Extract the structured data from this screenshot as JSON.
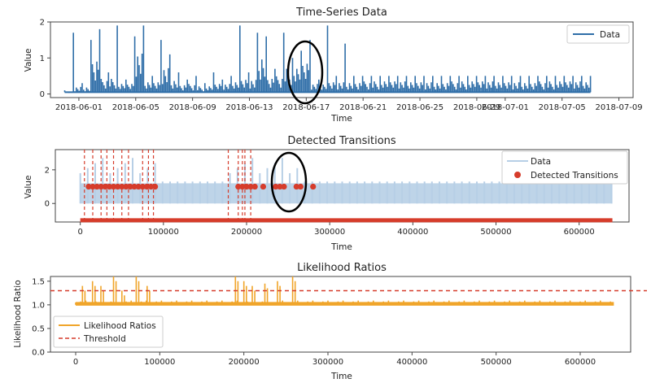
{
  "chart_data": [
    {
      "type": "line",
      "title": "Time-Series Data",
      "xlabel": "Time",
      "ylabel": "Value",
      "x_ticks": [
        "2018-06-01",
        "2018-06-05",
        "2018-06-09",
        "2018-06-13",
        "2018-06-17",
        "2018-06-21",
        "2018-06-25",
        "2018-06-29",
        "2018-07-01",
        "2018-07-05",
        "2018-07-09"
      ],
      "y_ticks": [
        0,
        1,
        2
      ],
      "ylim": [
        -0.1,
        2.0
      ],
      "xlim": [
        "2018-05-30",
        "2018-07-10"
      ],
      "series_color": "#2f6ea8",
      "legend": [
        "Data"
      ],
      "legend_position": "top-right",
      "series": [
        {
          "name": "Data",
          "x_start": "2018-05-31",
          "x_end": "2018-07-07",
          "note_dates": [],
          "values": [
            0.1,
            1.7,
            0.3,
            1.5,
            1.8,
            0.6,
            1.9,
            0.4,
            1.6,
            1.9,
            0.5,
            1.5,
            1.1,
            0.6,
            0.4,
            0.5,
            0.3,
            0.6,
            0.4,
            0.5,
            1.9,
            0.6,
            1.7,
            1.6,
            0.7,
            1.7,
            1.0,
            1.2,
            1.5,
            0.4,
            1.9,
            0.5,
            1.4,
            0.5,
            0.5,
            0.5,
            0.5,
            0.5,
            0.5,
            0.5,
            0.5,
            0.5,
            0.5,
            0.5,
            0.5,
            0.5,
            0.5,
            0.5,
            0.5,
            0.5,
            0.5,
            0.5,
            0.5,
            0.5,
            0.5,
            0.5,
            0.5,
            0.5,
            0.5,
            0.5,
            0.5
          ]
        }
      ],
      "annotation": "ellipse around 2018-06-17"
    },
    {
      "type": "scatter",
      "title": "Detected Transitions",
      "xlabel": "Time",
      "ylabel": "Value",
      "x_ticks": [
        0,
        100000,
        200000,
        300000,
        400000,
        500000,
        600000
      ],
      "y_ticks": [
        0,
        2
      ],
      "xlim": [
        -30000,
        660000
      ],
      "ylim": [
        -1.1,
        3.2
      ],
      "legend": [
        "Data",
        "Detected Transitions"
      ],
      "legend_position": "right",
      "data_color": "#b7cfe6",
      "transition_color": "#d63c2b",
      "data_x_end": 640000,
      "baseline_y": -1.0,
      "transition_level": 1.0,
      "transition_x": [
        10000,
        15000,
        20000,
        25000,
        30000,
        35000,
        40000,
        45000,
        50000,
        55000,
        60000,
        65000,
        70000,
        75000,
        80000,
        85000,
        90000,
        190000,
        195000,
        200000,
        205000,
        210000,
        220000,
        235000,
        240000,
        245000,
        260000,
        265000,
        280000
      ],
      "vertical_lines_x": [
        5000,
        15000,
        25000,
        32000,
        40000,
        50000,
        58000,
        75000,
        82000,
        88000,
        178000,
        190000,
        195000,
        198000,
        205000
      ],
      "annotation": "ellipse around 260000"
    },
    {
      "type": "line",
      "title": "Likelihood Ratios",
      "xlabel": "Time",
      "ylabel": "Likelihood Ratio",
      "x_ticks": [
        0,
        100000,
        200000,
        300000,
        400000,
        500000,
        600000
      ],
      "y_ticks": [
        0.0,
        0.5,
        1.0,
        1.5
      ],
      "xlim": [
        -30000,
        660000
      ],
      "ylim": [
        0.0,
        1.6
      ],
      "threshold": 1.3,
      "legend": [
        "Likelihood Ratios",
        "Threshold"
      ],
      "legend_position": "bottom-left",
      "series_color": "#f0a52a",
      "threshold_color": "#d63c2b",
      "series": [
        {
          "name": "Likelihood Ratios",
          "x_end": 640000,
          "base": 1.0,
          "spikes": [
            [
              8000,
              1.4
            ],
            [
              20000,
              1.5
            ],
            [
              30000,
              1.4
            ],
            [
              45000,
              1.6
            ],
            [
              55000,
              1.3
            ],
            [
              72000,
              1.6
            ],
            [
              85000,
              1.4
            ],
            [
              190000,
              1.6
            ],
            [
              200000,
              1.5
            ],
            [
              210000,
              1.4
            ],
            [
              225000,
              1.45
            ],
            [
              240000,
              1.5
            ],
            [
              258000,
              1.6
            ]
          ]
        }
      ]
    }
  ]
}
